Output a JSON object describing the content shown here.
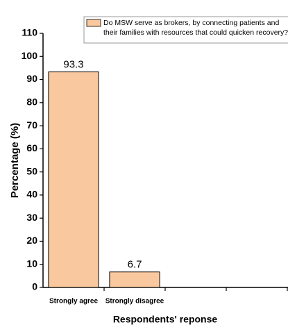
{
  "chart_data": {
    "type": "bar",
    "categories": [
      "Strongly agree",
      "Strongly disagree",
      null,
      null
    ],
    "series": [
      {
        "name": "Do MSW serve as brokers, by connecting patients and their families with resources that could quicken recovery?",
        "color": "#f9c89e",
        "values": [
          93.3,
          6.7,
          null,
          null
        ]
      }
    ],
    "y_label": "Percentage (%)",
    "x_label": "Respondents' reponse",
    "ylim": [
      0,
      110
    ],
    "yticks": [
      0,
      10,
      20,
      30,
      40,
      50,
      60,
      70,
      80,
      90,
      100,
      110
    ],
    "legend": "upper right"
  }
}
